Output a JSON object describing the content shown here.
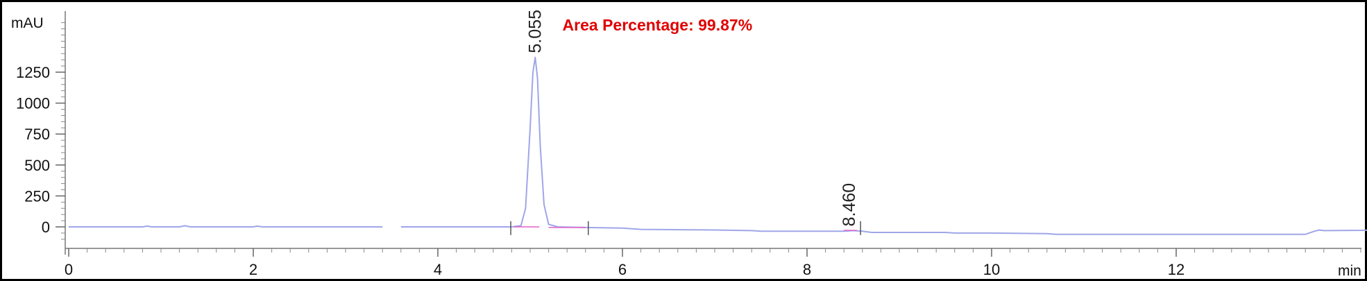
{
  "chart_data": {
    "type": "line",
    "title": "",
    "xlabel": "min",
    "ylabel": "mAU",
    "xlim": [
      -0.05,
      14.12
    ],
    "ylim": [
      -145,
      1690
    ],
    "x_ticks": [
      0,
      2,
      4,
      6,
      8,
      10,
      12
    ],
    "x_tick_labels": [
      "0",
      "2",
      "4",
      "6",
      "8",
      "10",
      "12"
    ],
    "y_ticks": [
      0,
      250,
      500,
      750,
      1000,
      1250
    ],
    "y_tick_labels": [
      "0",
      "250",
      "500",
      "750",
      "1000",
      "1250"
    ],
    "grid": false,
    "legend": "none",
    "colors": {
      "frame": "#000000",
      "signal": "#9fa6e8",
      "baseline_marker": "#e060c8",
      "annotation": "#e00000",
      "axis": "#777777"
    },
    "annotation": {
      "text": "Area Percentage: 99.87%",
      "x": 5.35,
      "y": 1585
    },
    "peaks": [
      {
        "retention_time": 5.055,
        "label": "5.055",
        "apex_y": 1370
      },
      {
        "retention_time": 8.46,
        "label": "8.460",
        "apex_y": -30
      }
    ],
    "signal_segments": [
      {
        "name": "segment-1",
        "x": [
          0,
          0.8,
          0.85,
          0.9,
          1.2,
          1.26,
          1.32,
          2.0,
          2.04,
          2.1,
          3.4
        ],
        "y": [
          0,
          0,
          6,
          0,
          0,
          9,
          0,
          0,
          6,
          0,
          0
        ]
      },
      {
        "name": "segment-2",
        "x": [
          3.6,
          4.5,
          4.8,
          4.9,
          4.95,
          5.0,
          5.03,
          5.055,
          5.08,
          5.11,
          5.15,
          5.2,
          5.3,
          5.6,
          6.0,
          6.2,
          7.0,
          7.4,
          7.5,
          8.0,
          8.4,
          8.5,
          8.6,
          8.7,
          9.0,
          9.5,
          9.6,
          10.0,
          10.6,
          10.7,
          11.0,
          12.0,
          12.5,
          13.0,
          13.4,
          13.5,
          13.55,
          13.6,
          14.0,
          14.12
        ],
        "y": [
          0,
          0,
          0,
          10,
          150,
          800,
          1250,
          1370,
          1200,
          650,
          180,
          20,
          0,
          -5,
          -10,
          -20,
          -25,
          -30,
          -35,
          -35,
          -35,
          -30,
          -35,
          -45,
          -45,
          -45,
          -50,
          -50,
          -55,
          -60,
          -60,
          -60,
          -60,
          -60,
          -60,
          -35,
          -25,
          -30,
          -28,
          -25
        ]
      }
    ],
    "baseline_markers": [
      {
        "x": [
          4.82,
          5.1
        ],
        "y": [
          0,
          0
        ]
      },
      {
        "x": [
          5.2,
          5.6
        ],
        "y": [
          -5,
          -5
        ]
      },
      {
        "x": [
          8.4,
          8.54
        ],
        "y": [
          -28,
          -28
        ]
      }
    ],
    "marker_ticks": [
      4.79,
      5.63,
      8.58
    ]
  }
}
